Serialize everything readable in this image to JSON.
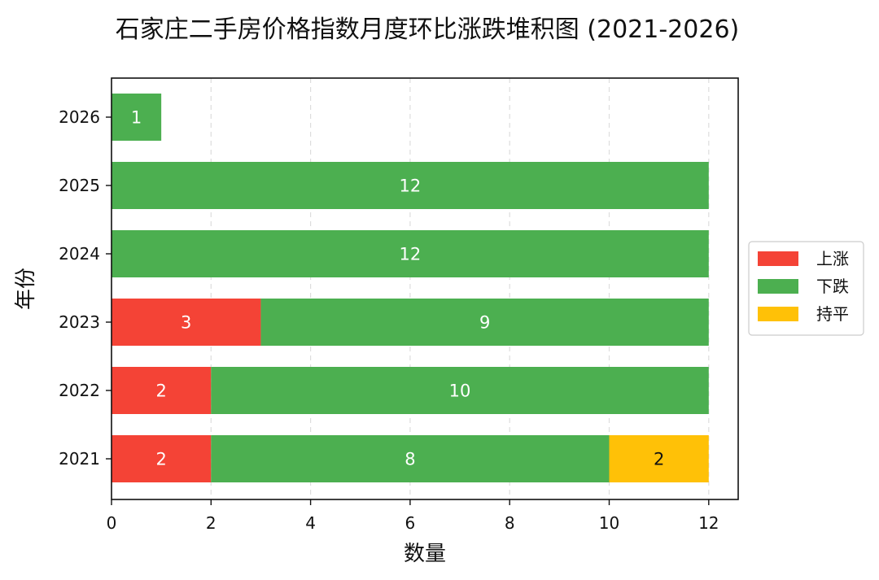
{
  "chart_data": {
    "type": "bar",
    "orientation": "horizontal",
    "stacked": true,
    "title": "石家庄二手房价格指数月度环比涨跌堆积图 (2021-2026)",
    "xlabel": "数量",
    "ylabel": "年份",
    "categories": [
      "2021",
      "2022",
      "2023",
      "2024",
      "2025",
      "2026"
    ],
    "series": [
      {
        "name": "上涨",
        "color": "#f44336",
        "values": [
          2,
          2,
          3,
          0,
          0,
          0
        ]
      },
      {
        "name": "下跌",
        "color": "#4caf50",
        "values": [
          8,
          10,
          9,
          12,
          12,
          1
        ]
      },
      {
        "name": "持平",
        "color": "#ffc107",
        "values": [
          2,
          0,
          0,
          0,
          0,
          0
        ]
      }
    ],
    "label_colors": {
      "上涨": "#ffffff",
      "下跌": "#ffffff",
      "持平": "#111111"
    },
    "xlim": [
      0,
      12.6
    ],
    "xticks": [
      0,
      2,
      4,
      6,
      8,
      10,
      12
    ],
    "grid": {
      "x": true,
      "y": false,
      "style": "dashed"
    },
    "legend": {
      "placement": "right"
    }
  }
}
